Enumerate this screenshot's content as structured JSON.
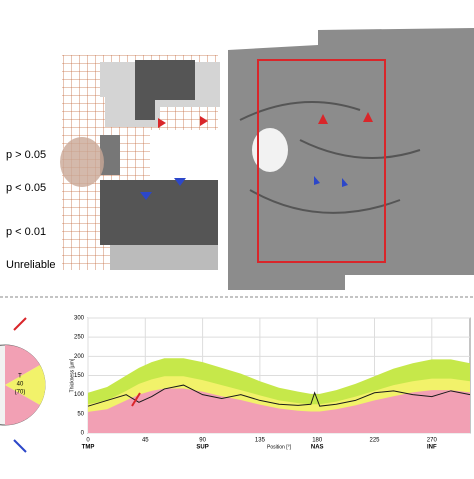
{
  "legend": {
    "items": [
      "p > 0.05",
      "p < 0.05",
      "p < 0.01",
      "Unreliable"
    ]
  },
  "sector_circle": {
    "label": "T",
    "value": "40",
    "normal": "(70)"
  },
  "chart_data": {
    "type": "line",
    "ylabel": "Thickness [µm]",
    "xlabel": "Position [°]",
    "x": [
      0,
      15,
      30,
      40,
      50,
      60,
      75,
      90,
      105,
      120,
      135,
      150,
      165,
      175,
      178,
      182,
      195,
      210,
      225,
      240,
      255,
      270,
      285,
      300
    ],
    "series": [
      {
        "color": "#c6e84a",
        "fill": true,
        "values": [
          105,
          120,
          150,
          170,
          185,
          195,
          195,
          185,
          170,
          155,
          135,
          118,
          108,
          102,
          102,
          102,
          112,
          128,
          148,
          168,
          182,
          192,
          192,
          182
        ]
      },
      {
        "color": "#f2f26a",
        "fill": true,
        "values": [
          75,
          85,
          110,
          128,
          140,
          148,
          148,
          138,
          125,
          112,
          98,
          85,
          78,
          75,
          75,
          75,
          82,
          95,
          110,
          125,
          135,
          142,
          142,
          135
        ]
      },
      {
        "color": "#f2a0b4",
        "fill": true,
        "values": [
          55,
          62,
          85,
          100,
          110,
          116,
          116,
          108,
          96,
          86,
          74,
          64,
          58,
          56,
          56,
          56,
          62,
          72,
          85,
          96,
          106,
          112,
          112,
          106
        ]
      },
      {
        "color": "#1a1a1a",
        "fill": false,
        "values": [
          70,
          85,
          100,
          80,
          95,
          115,
          125,
          100,
          90,
          100,
          85,
          75,
          72,
          75,
          105,
          70,
          75,
          85,
          105,
          110,
          100,
          95,
          110,
          100
        ]
      }
    ],
    "xlim": [
      0,
      300
    ],
    "ylim": [
      0,
      300
    ],
    "xticks": [
      0,
      45,
      90,
      135,
      180,
      225,
      270
    ],
    "yticks": [
      0,
      50,
      100,
      150,
      200,
      250,
      300
    ],
    "xsectors": [
      {
        "value": 0,
        "label": "TMP"
      },
      {
        "value": 90,
        "label": "SUP"
      },
      {
        "value": 180,
        "label": "NAS"
      },
      {
        "value": 270,
        "label": "INF"
      }
    ],
    "grid": true
  }
}
